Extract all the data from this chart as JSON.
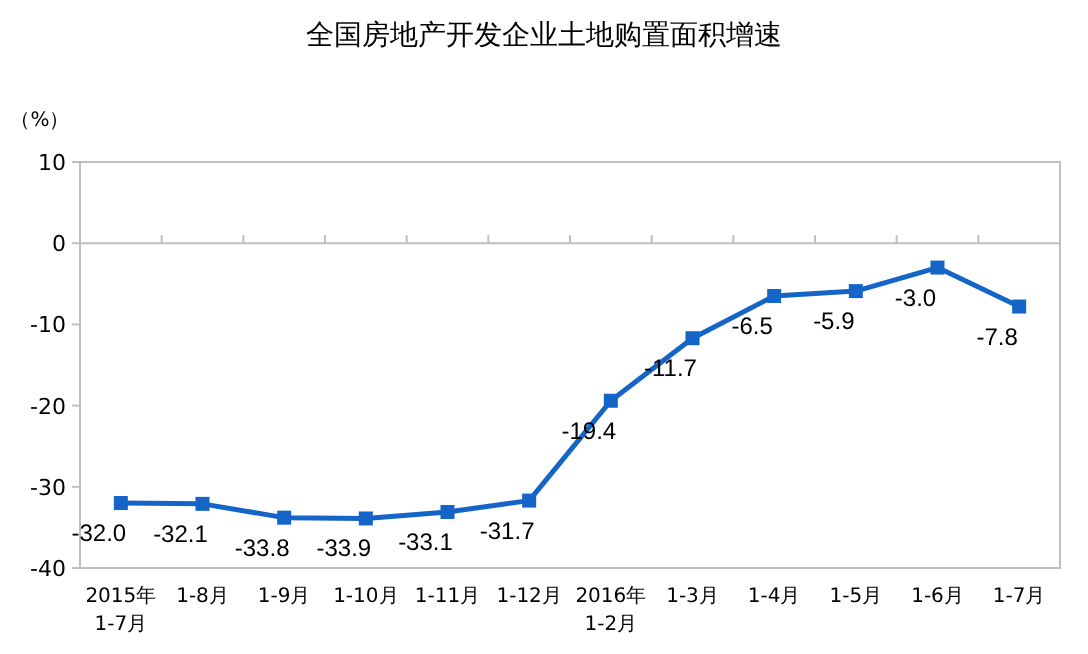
{
  "chart_data": {
    "type": "line",
    "title": "全国房地产开发企业土地购置面积增速",
    "ylabel": "（%）",
    "categories": [
      "2015年 1-7月",
      "1-8月",
      "1-9月",
      "1-10月",
      "1-11月",
      "1-12月",
      "2016年 1-2月",
      "1-3月",
      "1-4月",
      "1-5月",
      "1-6月",
      "1-7月"
    ],
    "series": [
      {
        "color": "#1565c8",
        "values": [
          -32.0,
          -32.1,
          -33.8,
          -33.9,
          -33.1,
          -31.7,
          -19.4,
          -11.7,
          -6.5,
          -5.9,
          -3.0,
          -7.8
        ],
        "value_labels": [
          "-32.0",
          "-32.1",
          "-33.8",
          "-33.9",
          "-33.1",
          "-31.7",
          "-19.4",
          "-11.7",
          "-6.5",
          "-5.9",
          "-3.0",
          "-7.8"
        ]
      }
    ],
    "ylim": [
      -40,
      10
    ],
    "yticks": [
      -40,
      -30,
      -20,
      -10,
      0,
      10
    ],
    "marker": "square"
  }
}
